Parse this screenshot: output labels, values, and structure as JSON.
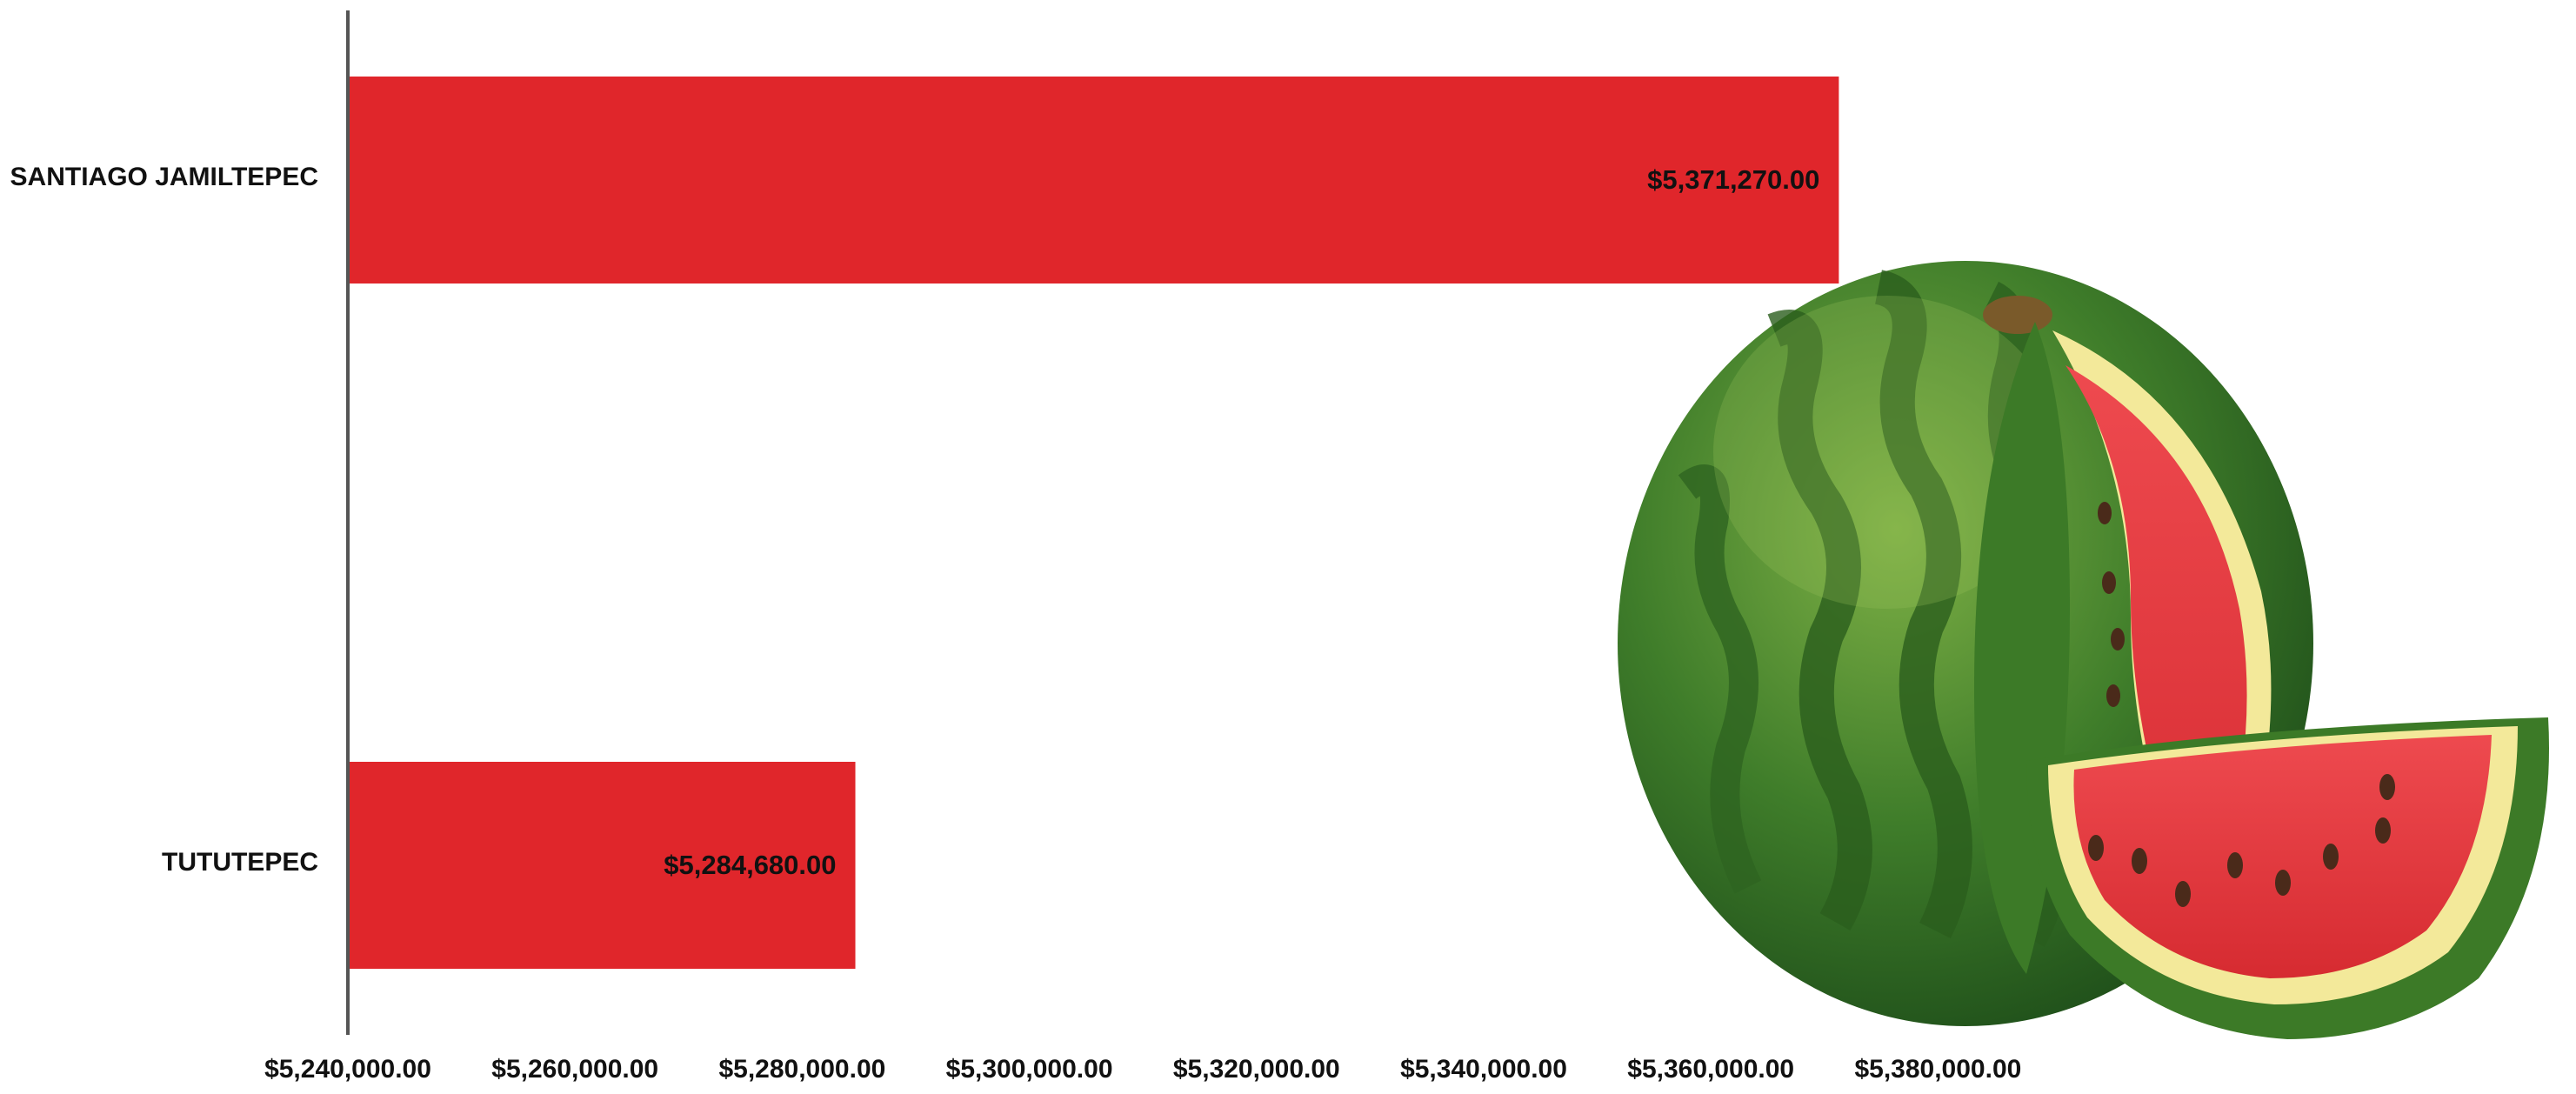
{
  "chart_data": {
    "type": "bar",
    "orientation": "horizontal",
    "categories": [
      "SANTIAGO JAMILTEPEC",
      "TUTUTEPEC"
    ],
    "values": [
      5371270.0,
      5284680.0
    ],
    "data_labels": [
      "$5,371,270.00",
      "$5,284,680.00"
    ],
    "xlim": [
      5240000,
      5400000
    ],
    "x_ticks": [
      5240000,
      5260000,
      5280000,
      5300000,
      5320000,
      5340000,
      5360000,
      5380000
    ],
    "x_tick_labels": [
      "$5,240,000.00",
      "$5,260,000.00",
      "$5,280,000.00",
      "$5,300,000.00",
      "$5,320,000.00",
      "$5,340,000.00",
      "$5,360,000.00",
      "$5,380,000.00"
    ],
    "grid": false,
    "legend": "none",
    "colors": {
      "bar": "#E0262B",
      "axis": "#555555",
      "text": "#111111"
    }
  },
  "decoration": {
    "icon": "watermelon-icon"
  }
}
